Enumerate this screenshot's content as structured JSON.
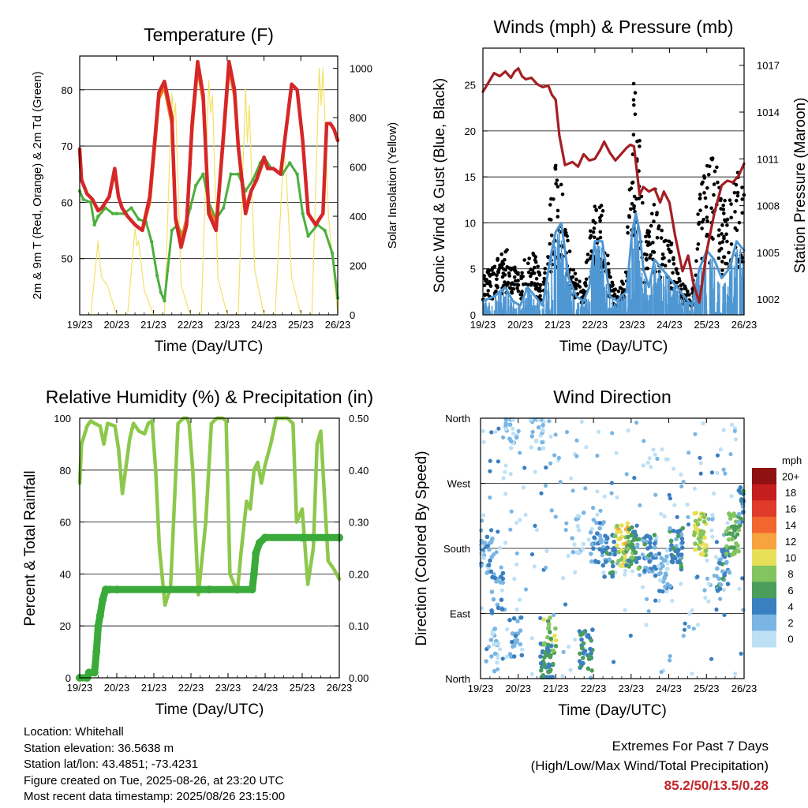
{
  "footer": {
    "location": "Location: Whitehall",
    "elevation": "Station elevation: 36.5638 m",
    "latlon": "Station lat/lon: 43.4851; -73.4231",
    "created": "Figure created on Tue, 2025-08-26, at 23:20 UTC",
    "latest": "Most recent data timestamp: 2025/08/26 23:15:00"
  },
  "extremes": {
    "title": "Extremes For Past 7 Days",
    "subtitle": "(High/Low/Max Wind/Total Precipitation)",
    "values": "85.2/50/13.5/0.28"
  },
  "chart_data": [
    {
      "type": "line",
      "title": "Temperature (F)",
      "xlabel": "Time (Day/UTC)",
      "ylabel": "2m & 9m T (Red, Orange) & 2m Td (Green)",
      "y2label": "Solar Insolation (Yellow)",
      "xticks": [
        "19/23",
        "20/23",
        "21/23",
        "22/23",
        "23/23",
        "24/23",
        "25/23",
        "26/23"
      ],
      "xlim": [
        0,
        7
      ],
      "ylim": [
        40,
        86
      ],
      "yticks": [
        50,
        60,
        70,
        80
      ],
      "y2lim": [
        0,
        1050
      ],
      "y2ticks": [
        0,
        200,
        400,
        600,
        800,
        1000
      ],
      "colors": {
        "t2m": "#d62728",
        "t9m": "#f07a1a",
        "td": "#4caf3e",
        "solar": "#f2e266"
      },
      "series": [
        {
          "name": "2m T",
          "key": "t2m",
          "x": [
            0,
            0.05,
            0.2,
            0.35,
            0.5,
            0.6,
            0.8,
            0.95,
            1.05,
            1.15,
            1.3,
            1.5,
            1.7,
            1.9,
            2.05,
            2.15,
            2.3,
            2.5,
            2.6,
            2.75,
            2.9,
            3.05,
            3.2,
            3.35,
            3.5,
            3.7,
            3.9,
            4.05,
            4.2,
            4.3,
            4.5,
            4.65,
            4.8,
            5.0,
            5.1,
            5.25,
            5.45,
            5.6,
            5.75,
            5.9,
            6.05,
            6.2,
            6.4,
            6.6,
            6.7,
            6.8,
            6.9,
            7.0
          ],
          "y": [
            69.5,
            64,
            61.5,
            60.5,
            58.5,
            59,
            61,
            66,
            61,
            59,
            57.5,
            56,
            55,
            61,
            72,
            79.5,
            81.5,
            75,
            57,
            52,
            56,
            74,
            85,
            79,
            58,
            55,
            72,
            85,
            80,
            70,
            58,
            62,
            64,
            68,
            66,
            66,
            65,
            73,
            81,
            80,
            71,
            58,
            56,
            58,
            74,
            74,
            73,
            71
          ]
        },
        {
          "name": "9m T",
          "key": "t9m",
          "x": [
            0.5,
            0.6,
            0.8,
            0.95,
            1.05,
            1.15,
            1.3,
            1.5,
            1.7,
            1.9,
            2.05,
            2.15,
            2.3,
            2.5,
            2.6,
            2.75,
            2.9,
            3.05,
            3.2,
            3.35,
            3.5,
            3.7,
            3.9,
            4.05,
            4.2,
            4.3,
            4.5,
            4.65,
            4.8,
            5.0
          ],
          "y": [
            58.5,
            59,
            61,
            65.5,
            61,
            59,
            57.5,
            56,
            55,
            60,
            71,
            78.5,
            80.5,
            74,
            57.5,
            53,
            57,
            73,
            84,
            78,
            59,
            56,
            71,
            84,
            79,
            70,
            59,
            62,
            64,
            67.5
          ]
        },
        {
          "name": "2m Td",
          "key": "td",
          "x": [
            0,
            0.1,
            0.3,
            0.4,
            0.5,
            0.7,
            0.9,
            1.0,
            1.2,
            1.4,
            1.6,
            1.8,
            1.95,
            2.1,
            2.2,
            2.3,
            2.5,
            2.65,
            2.8,
            3.0,
            3.15,
            3.35,
            3.5,
            3.7,
            3.9,
            4.1,
            4.3,
            4.5,
            4.7,
            4.9,
            5.0,
            5.2,
            5.5,
            5.7,
            5.9,
            6.05,
            6.2,
            6.45,
            6.65,
            6.85,
            7.0
          ],
          "y": [
            62,
            60.5,
            60,
            56,
            57.5,
            59,
            58,
            58,
            58,
            59,
            57,
            56.5,
            53,
            47,
            44,
            42.5,
            55,
            56,
            54,
            59,
            63,
            65,
            60,
            57,
            59,
            65,
            65,
            62,
            64,
            67,
            68,
            66,
            65,
            67,
            65,
            58,
            54,
            56,
            55,
            51,
            43
          ]
        },
        {
          "name": "Solar",
          "key": "solar",
          "axis": "y2",
          "x": [
            0.3,
            0.5,
            0.55,
            0.6,
            0.75,
            1.0,
            1.3,
            1.5,
            1.55,
            1.6,
            1.75,
            2.0,
            2.3,
            2.5,
            2.55,
            2.6,
            2.75,
            3.0,
            3.3,
            3.5,
            3.55,
            3.6,
            3.75,
            4.0,
            4.3,
            4.5,
            4.55,
            4.6,
            4.75,
            5.0,
            5.3,
            5.5,
            5.55,
            5.6,
            5.75,
            6.0,
            6.3,
            6.5,
            6.55,
            6.6,
            6.75,
            7.0
          ],
          "y": [
            0,
            300,
            200,
            150,
            120,
            0,
            0,
            350,
            280,
            300,
            100,
            0,
            0,
            900,
            780,
            860,
            120,
            0,
            0,
            950,
            820,
            890,
            150,
            0,
            0,
            920,
            700,
            850,
            180,
            0,
            0,
            560,
            650,
            580,
            150,
            0,
            0,
            1000,
            850,
            1000,
            400,
            0
          ]
        }
      ]
    },
    {
      "type": "scatter",
      "title": "Winds (mph) & Pressure (mb)",
      "xlabel": "Time (Day/UTC)",
      "ylabel": "Sonic Wind & Gust (Blue, Black)",
      "y2label": "Station Pressure (Maroon)",
      "xticks": [
        "19/23",
        "20/23",
        "21/23",
        "22/23",
        "23/23",
        "24/23",
        "25/23",
        "26/23"
      ],
      "xlim": [
        0,
        7
      ],
      "ylim": [
        0,
        29
      ],
      "yticks": [
        0,
        5,
        10,
        15,
        20,
        25
      ],
      "y2lim": [
        1001,
        1018.1
      ],
      "y2ticks": [
        1002,
        1005,
        1008,
        1011,
        1014,
        1017
      ],
      "colors": {
        "wind": "#4f97d3",
        "gust": "#000000",
        "pressure": "#a31f24"
      },
      "series": [
        {
          "name": "Wind",
          "key": "wind",
          "x": [
            0,
            0.3,
            0.6,
            0.8,
            1.0,
            1.2,
            1.4,
            1.6,
            1.8,
            1.95,
            2.1,
            2.3,
            2.5,
            2.7,
            2.85,
            3.0,
            3.2,
            3.4,
            3.6,
            3.7,
            3.85,
            4.0,
            4.1,
            4.2,
            4.3,
            4.45,
            4.6,
            4.8,
            5.0,
            5.2,
            5.4,
            5.6,
            5.8,
            6.0,
            6.2,
            6.4,
            6.6,
            6.8,
            7.0
          ],
          "y": [
            1.5,
            2,
            3,
            1.5,
            1,
            3,
            2,
            1,
            6,
            9,
            10,
            4,
            2,
            1.5,
            3,
            8,
            8,
            2,
            1.5,
            2,
            2.5,
            9,
            11,
            9,
            5,
            3,
            6,
            5,
            4,
            3,
            2,
            1,
            5,
            7,
            6,
            4,
            5,
            8,
            7
          ]
        },
        {
          "name": "Gust",
          "key": "gust",
          "x": [
            0,
            0.3,
            0.6,
            0.8,
            1.0,
            1.2,
            1.4,
            1.6,
            1.8,
            1.95,
            2.1,
            2.3,
            2.5,
            2.7,
            2.85,
            3.0,
            3.2,
            3.4,
            3.6,
            3.7,
            3.85,
            4.0,
            4.1,
            4.2,
            4.3,
            4.45,
            4.6,
            4.8,
            5.0,
            5.2,
            5.4,
            5.6,
            5.8,
            6.0,
            6.2,
            6.4,
            6.6,
            6.8,
            7.0
          ],
          "y": [
            4,
            5,
            7,
            5,
            4,
            7,
            6,
            3,
            12,
            15,
            13,
            7,
            4,
            3,
            8,
            13,
            12,
            4,
            2,
            3,
            6,
            22,
            26,
            21,
            10,
            8,
            13,
            9,
            8,
            5,
            3,
            2,
            12,
            15,
            17,
            11,
            13,
            15,
            12
          ]
        },
        {
          "name": "Pressure",
          "key": "pressure",
          "axis": "y2",
          "x": [
            0,
            0.15,
            0.3,
            0.45,
            0.6,
            0.75,
            0.85,
            0.95,
            1.05,
            1.15,
            1.3,
            1.45,
            1.6,
            1.75,
            1.85,
            1.95,
            2.05,
            2.2,
            2.4,
            2.55,
            2.7,
            2.85,
            3.0,
            3.15,
            3.25,
            3.4,
            3.55,
            3.7,
            3.85,
            3.95,
            4.05,
            4.2,
            4.3,
            4.45,
            4.6,
            4.75,
            4.85,
            5.0,
            5.15,
            5.35,
            5.5,
            5.65,
            5.8,
            6.0,
            6.2,
            6.4,
            6.55,
            6.7,
            6.85,
            7.0
          ],
          "y": [
            1015.3,
            1015.9,
            1016.5,
            1016.3,
            1016.6,
            1016.2,
            1016.6,
            1016.8,
            1016.3,
            1016.1,
            1016.2,
            1015.8,
            1015.6,
            1015.7,
            1015.1,
            1014.8,
            1012.5,
            1010.6,
            1010.8,
            1010.5,
            1011.3,
            1010.9,
            1011.0,
            1011.6,
            1012.1,
            1011.4,
            1010.9,
            1011.3,
            1011.7,
            1011.9,
            1011.8,
            1008.7,
            1009.2,
            1008.9,
            1009.1,
            1008.2,
            1008.9,
            1008.2,
            1006.1,
            1003.8,
            1004.8,
            1002.9,
            1001.8,
            1005.1,
            1007.5,
            1009.3,
            1009.6,
            1009.5,
            1009.9,
            1010.7
          ]
        }
      ]
    },
    {
      "type": "line",
      "title": "Relative Humidity (%) & Precipitation (in)",
      "xlabel": "Time (Day/UTC)",
      "ylabel": "Percent & Total Rainfall",
      "xticks": [
        "19/23",
        "20/23",
        "21/23",
        "22/23",
        "23/23",
        "24/23",
        "25/23",
        "26/23"
      ],
      "xlim": [
        0,
        7
      ],
      "ylim": [
        0,
        100
      ],
      "yticks": [
        0,
        20,
        40,
        60,
        80,
        100
      ],
      "y2lim": [
        0,
        0.5
      ],
      "y2ticks": [
        "0.00",
        "0.10",
        "0.20",
        "0.30",
        "0.40",
        "0.50"
      ],
      "colors": {
        "rh": "#8cc84b",
        "precip": "#3aaa3a"
      },
      "series": [
        {
          "name": "RH",
          "key": "rh",
          "x": [
            0,
            0.05,
            0.2,
            0.3,
            0.4,
            0.55,
            0.65,
            0.75,
            0.95,
            1.05,
            1.15,
            1.35,
            1.45,
            1.6,
            1.75,
            1.85,
            1.95,
            2.05,
            2.15,
            2.3,
            2.45,
            2.65,
            2.8,
            2.9,
            2.95,
            3.05,
            3.2,
            3.4,
            3.55,
            3.7,
            3.85,
            3.95,
            4.05,
            4.25,
            4.35,
            4.5,
            4.6,
            4.7,
            4.8,
            4.9,
            5.0,
            5.15,
            5.3,
            5.45,
            5.6,
            5.75,
            5.85,
            6.0,
            6.15,
            6.3,
            6.4,
            6.5,
            6.6,
            6.7,
            6.85,
            7.0
          ],
          "y": [
            75,
            90,
            97,
            99,
            98,
            97,
            90,
            98,
            97,
            88,
            71,
            92,
            98,
            95,
            94,
            98,
            99,
            80,
            50,
            28,
            35,
            98,
            100,
            100,
            98,
            80,
            32,
            60,
            98,
            100,
            100,
            99,
            40,
            33,
            48,
            68,
            65,
            80,
            83,
            75,
            82,
            90,
            100,
            100,
            100,
            98,
            60,
            65,
            36,
            50,
            90,
            95,
            70,
            45,
            42,
            38
          ]
        },
        {
          "name": "Precip",
          "key": "precip",
          "axis": "y2",
          "x": [
            0,
            0.2,
            0.25,
            0.4,
            0.45,
            0.5,
            0.55,
            0.62,
            0.7,
            0.8,
            1.0,
            3.5,
            4.65,
            4.7,
            4.75,
            4.85,
            5.0,
            6.0,
            7.0
          ],
          "y": [
            0,
            0,
            0.01,
            0.01,
            0.05,
            0.1,
            0.12,
            0.15,
            0.17,
            0.17,
            0.17,
            0.17,
            0.17,
            0.2,
            0.24,
            0.26,
            0.27,
            0.27,
            0.27
          ]
        }
      ]
    },
    {
      "type": "scatter",
      "title": "Wind Direction",
      "xlabel": "Time (Day/UTC)",
      "ylabel": "Direction (Colored By Speed)",
      "xticks": [
        "19/23",
        "20/23",
        "21/23",
        "22/23",
        "23/23",
        "24/23",
        "25/23",
        "26/23"
      ],
      "xlim": [
        0,
        7
      ],
      "ylim": [
        0,
        360
      ],
      "yticks": [
        "North",
        "East",
        "South",
        "West",
        "North"
      ],
      "colorbar": {
        "unit": "mph",
        "labels": [
          "20+",
          "18",
          "16",
          "14",
          "12",
          "10",
          "8",
          "6",
          "4",
          "2",
          "0"
        ],
        "colors": [
          "#8f1111",
          "#c41e1e",
          "#e03a2b",
          "#f2672f",
          "#f7a340",
          "#e8df58",
          "#84c460",
          "#4a9e5a",
          "#3a7fbf",
          "#7ab5e3",
          "#bde0f5"
        ]
      },
      "clusters": [
        {
          "x": 0.15,
          "y": 170,
          "n": 28,
          "speed": 2
        },
        {
          "x": 0.45,
          "y": 120,
          "n": 20,
          "speed": 3
        },
        {
          "x": 0.3,
          "y": 40,
          "n": 16,
          "speed": 1
        },
        {
          "x": 0.8,
          "y": 345,
          "n": 18,
          "speed": 1
        },
        {
          "x": 0.95,
          "y": 60,
          "n": 20,
          "speed": 3
        },
        {
          "x": 1.5,
          "y": 340,
          "n": 22,
          "speed": 1
        },
        {
          "x": 1.75,
          "y": 20,
          "n": 45,
          "speed": 5
        },
        {
          "x": 1.85,
          "y": 60,
          "n": 20,
          "speed": 8
        },
        {
          "x": 2.8,
          "y": 40,
          "n": 35,
          "speed": 5
        },
        {
          "x": 2.6,
          "y": 200,
          "n": 16,
          "speed": 1
        },
        {
          "x": 3.1,
          "y": 190,
          "n": 25,
          "speed": 3
        },
        {
          "x": 3.4,
          "y": 170,
          "n": 30,
          "speed": 4
        },
        {
          "x": 3.75,
          "y": 185,
          "n": 35,
          "speed": 10
        },
        {
          "x": 4.05,
          "y": 180,
          "n": 45,
          "speed": 6
        },
        {
          "x": 4.5,
          "y": 170,
          "n": 40,
          "speed": 4
        },
        {
          "x": 4.9,
          "y": 150,
          "n": 30,
          "speed": 2
        },
        {
          "x": 5.2,
          "y": 180,
          "n": 40,
          "speed": 4
        },
        {
          "x": 5.85,
          "y": 200,
          "n": 50,
          "speed": 9
        },
        {
          "x": 6.45,
          "y": 150,
          "n": 35,
          "speed": 4
        },
        {
          "x": 6.7,
          "y": 200,
          "n": 40,
          "speed": 7
        },
        {
          "x": 6.95,
          "y": 240,
          "n": 20,
          "speed": 4
        }
      ]
    }
  ]
}
